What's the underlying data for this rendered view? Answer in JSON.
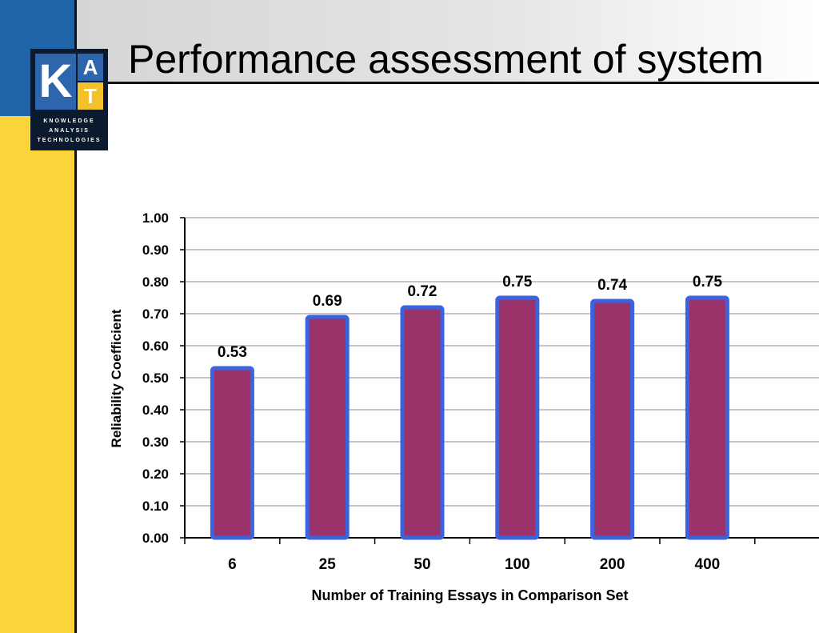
{
  "slide": {
    "title": "Performance assessment of system"
  },
  "logo": {
    "letter_k": "K",
    "letter_a": "A",
    "letter_t": "T",
    "tagline": [
      "KNOWLEDGE",
      "ANALYSIS",
      "TECHNOLOGIES"
    ]
  },
  "colors": {
    "accent_blue": "#1f63a8",
    "accent_yellow": "#fbd43a",
    "bar_fill": "#99336a",
    "bar_border": "#3b63e0"
  },
  "chart_data": {
    "type": "bar",
    "categories": [
      "6",
      "25",
      "50",
      "100",
      "200",
      "400"
    ],
    "values": [
      0.53,
      0.69,
      0.72,
      0.75,
      0.74,
      0.75
    ],
    "data_labels": [
      "0.53",
      "0.69",
      "0.72",
      "0.75",
      "0.74",
      "0.75"
    ],
    "title": "",
    "xlabel": "Number of Training Essays in Comparison Set",
    "ylabel": "Reliability Coefficient",
    "ylim": [
      0,
      1
    ],
    "yticks": [
      "0.00",
      "0.10",
      "0.20",
      "0.30",
      "0.40",
      "0.50",
      "0.60",
      "0.70",
      "0.80",
      "0.90",
      "1.00"
    ],
    "grid": true,
    "legend": "none"
  }
}
